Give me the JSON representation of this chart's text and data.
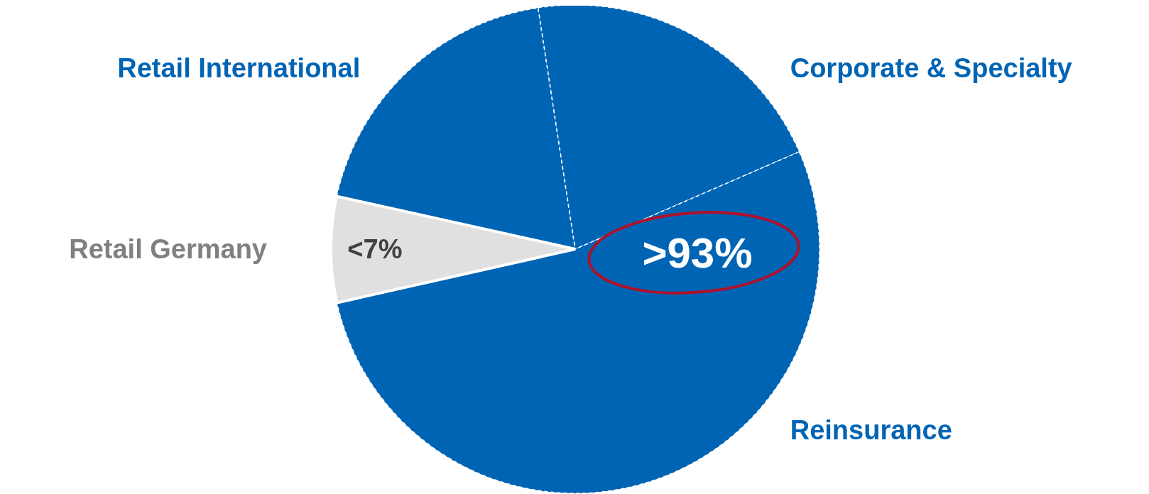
{
  "chart_data": {
    "type": "pie",
    "categories": [
      "Retail International",
      "Corporate & Specialty",
      "Reinsurance",
      "Retail Germany"
    ],
    "values": [
      19.1,
      20.9,
      53,
      7
    ],
    "colors": [
      "#0064b4",
      "#0064b4",
      "#0064b4",
      "#e0e0e0"
    ],
    "annotations": [
      "<7%",
      ">93%"
    ],
    "legend": false
  }
}
